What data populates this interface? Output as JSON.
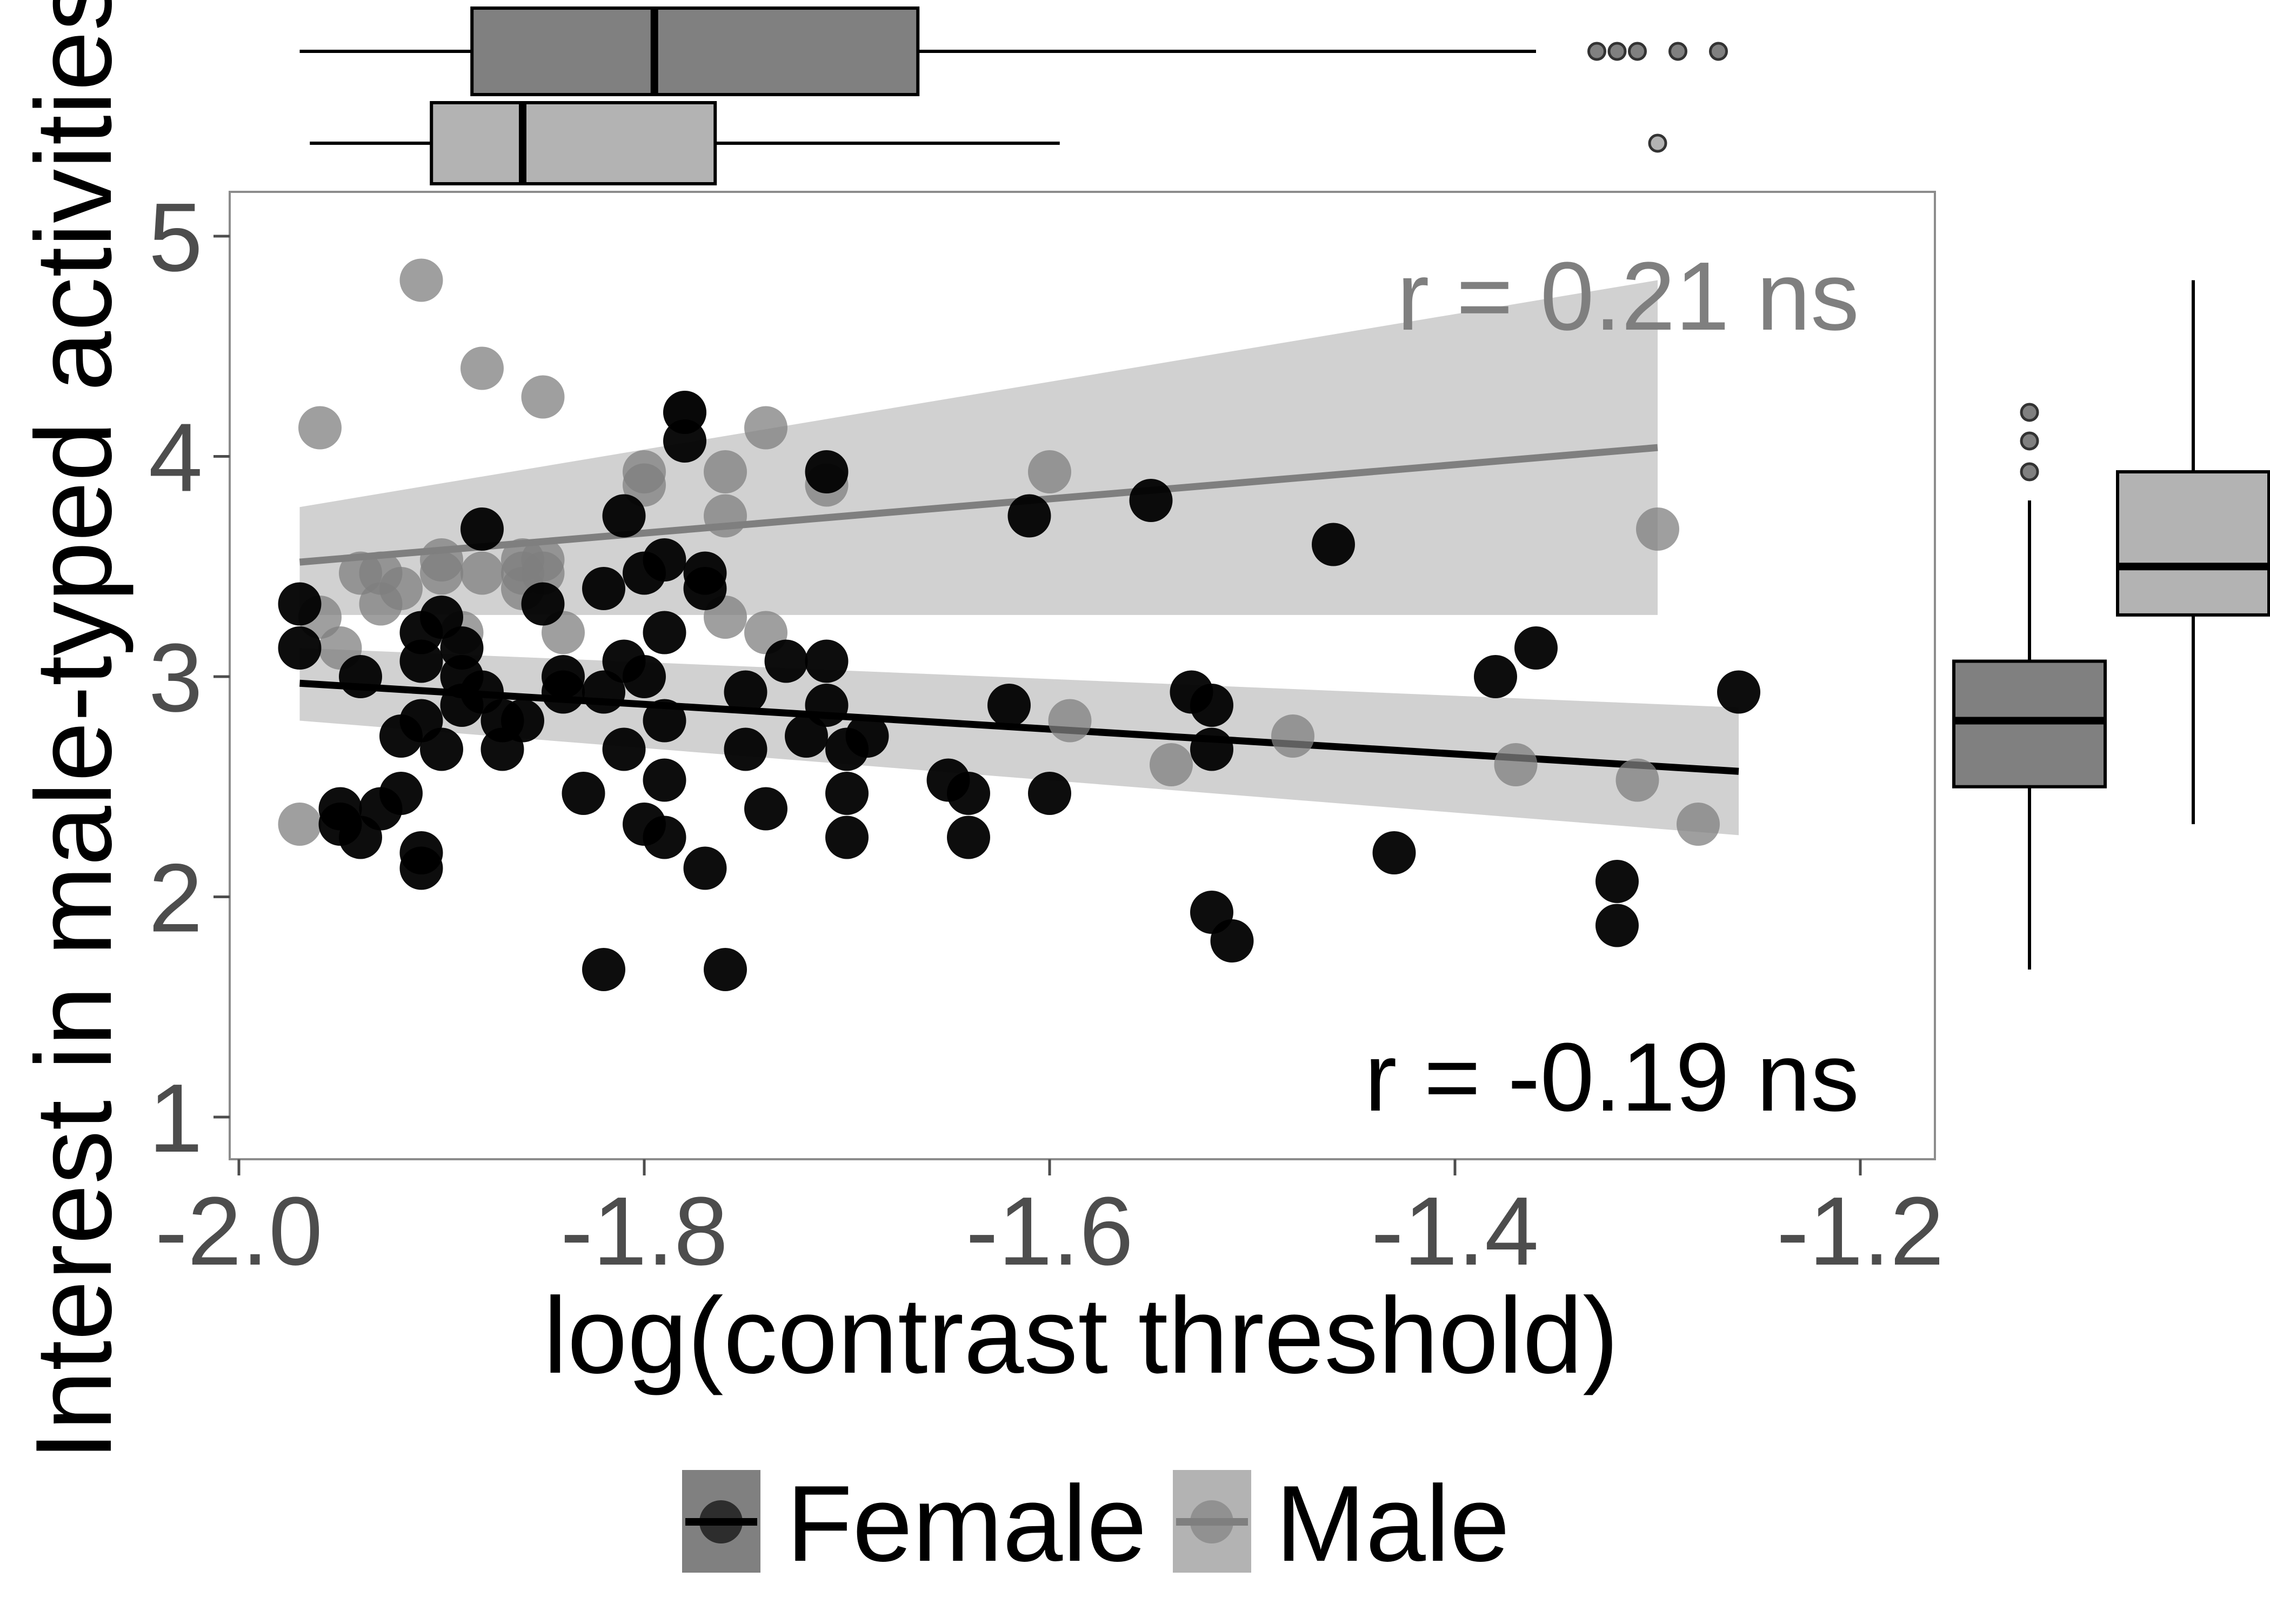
{
  "chart_data": {
    "type": "scatter",
    "xlabel": "log(contrast threshold)",
    "ylabel": "Interest in male-typed activities",
    "xlim": [
      -2.0,
      -1.2
    ],
    "ylim": [
      1,
      5
    ],
    "x_ticks": [
      "-2.0",
      "-1.8",
      "-1.6",
      "-1.4",
      "-1.2"
    ],
    "y_ticks": [
      "1",
      "2",
      "3",
      "4",
      "5"
    ],
    "grid": false,
    "legend_position": "bottom",
    "colors": {
      "female": "#000000",
      "male": "#7f7f7f",
      "female_box": "#808080",
      "male_box": "#b3b3b3",
      "band": "#bdbdbd",
      "axis_text": "#4d4d4d"
    },
    "annotations": {
      "male": "r = 0.21 ns",
      "female": "r = -0.19 ns"
    },
    "series": [
      {
        "name": "Female",
        "regression": {
          "x": [
            -1.97,
            -1.26
          ],
          "y": [
            2.97,
            2.57
          ],
          "ci_low": [
            2.8,
            2.28
          ],
          "ci_high": [
            3.13,
            2.86
          ]
        },
        "points": [
          [
            -1.97,
            3.33
          ],
          [
            -1.97,
            3.13
          ],
          [
            -1.95,
            2.33
          ],
          [
            -1.95,
            2.4
          ],
          [
            -1.94,
            2.27
          ],
          [
            -1.94,
            3.0
          ],
          [
            -1.93,
            2.4
          ],
          [
            -1.92,
            2.47
          ],
          [
            -1.92,
            2.73
          ],
          [
            -1.91,
            2.8
          ],
          [
            -1.91,
            3.07
          ],
          [
            -1.91,
            3.2
          ],
          [
            -1.9,
            3.27
          ],
          [
            -1.91,
            2.2
          ],
          [
            -1.91,
            2.13
          ],
          [
            -1.9,
            2.67
          ],
          [
            -1.89,
            2.87
          ],
          [
            -1.89,
            3.0
          ],
          [
            -1.89,
            3.13
          ],
          [
            -1.88,
            3.67
          ],
          [
            -1.88,
            2.93
          ],
          [
            -1.87,
            2.67
          ],
          [
            -1.87,
            2.8
          ],
          [
            -1.86,
            2.8
          ],
          [
            -1.85,
            3.33
          ],
          [
            -1.84,
            2.93
          ],
          [
            -1.84,
            3.0
          ],
          [
            -1.83,
            2.47
          ],
          [
            -1.82,
            2.93
          ],
          [
            -1.82,
            3.4
          ],
          [
            -1.82,
            1.67
          ],
          [
            -1.81,
            3.07
          ],
          [
            -1.81,
            2.67
          ],
          [
            -1.81,
            3.73
          ],
          [
            -1.8,
            3.0
          ],
          [
            -1.8,
            3.47
          ],
          [
            -1.8,
            2.33
          ],
          [
            -1.79,
            2.27
          ],
          [
            -1.79,
            2.53
          ],
          [
            -1.79,
            3.2
          ],
          [
            -1.79,
            3.53
          ],
          [
            -1.79,
            2.8
          ],
          [
            -1.78,
            4.07
          ],
          [
            -1.78,
            4.2
          ],
          [
            -1.77,
            3.4
          ],
          [
            -1.77,
            3.47
          ],
          [
            -1.77,
            2.13
          ],
          [
            -1.76,
            1.67
          ],
          [
            -1.75,
            2.93
          ],
          [
            -1.75,
            2.67
          ],
          [
            -1.74,
            2.4
          ],
          [
            -1.73,
            3.07
          ],
          [
            -1.72,
            2.73
          ],
          [
            -1.71,
            3.93
          ],
          [
            -1.71,
            2.87
          ],
          [
            -1.71,
            3.07
          ],
          [
            -1.7,
            2.47
          ],
          [
            -1.7,
            2.67
          ],
          [
            -1.7,
            2.27
          ],
          [
            -1.69,
            2.73
          ],
          [
            -1.65,
            2.53
          ],
          [
            -1.64,
            2.47
          ],
          [
            -1.64,
            2.27
          ],
          [
            -1.62,
            2.87
          ],
          [
            -1.61,
            3.73
          ],
          [
            -1.6,
            2.47
          ],
          [
            -1.55,
            3.8
          ],
          [
            -1.53,
            2.93
          ],
          [
            -1.52,
            2.87
          ],
          [
            -1.52,
            1.93
          ],
          [
            -1.52,
            2.67
          ],
          [
            -1.51,
            1.8
          ],
          [
            -1.46,
            3.6
          ],
          [
            -1.43,
            2.2
          ],
          [
            -1.38,
            3.0
          ],
          [
            -1.36,
            3.13
          ],
          [
            -1.32,
            2.07
          ],
          [
            -1.32,
            1.87
          ],
          [
            -1.26,
            2.93
          ]
        ],
        "boxplot_y": {
          "min": 1.67,
          "q1": 2.5,
          "median": 2.8,
          "q3": 3.07,
          "max": 3.8,
          "outliers": [
            3.93,
            4.07,
            4.2
          ]
        },
        "boxplot_x": {
          "min": -1.97,
          "q1": -1.885,
          "median": -1.795,
          "q3": -1.665,
          "max": -1.36,
          "outliers": [
            -1.33,
            -1.32,
            -1.31,
            -1.29,
            -1.27
          ]
        }
      },
      {
        "name": "Male",
        "regression": {
          "x": [
            -1.97,
            -1.3
          ],
          "y": [
            3.52,
            4.04
          ],
          "ci_low": [
            3.28,
            3.28
          ],
          "ci_high": [
            3.77,
            4.8
          ]
        },
        "points": [
          [
            -1.97,
            2.33
          ],
          [
            -1.96,
            4.13
          ],
          [
            -1.96,
            3.27
          ],
          [
            -1.95,
            3.13
          ],
          [
            -1.94,
            3.47
          ],
          [
            -1.93,
            3.47
          ],
          [
            -1.93,
            3.33
          ],
          [
            -1.92,
            3.4
          ],
          [
            -1.91,
            4.8
          ],
          [
            -1.9,
            3.47
          ],
          [
            -1.9,
            3.53
          ],
          [
            -1.89,
            3.2
          ],
          [
            -1.88,
            3.47
          ],
          [
            -1.88,
            4.4
          ],
          [
            -1.86,
            3.47
          ],
          [
            -1.86,
            3.53
          ],
          [
            -1.86,
            3.4
          ],
          [
            -1.85,
            4.27
          ],
          [
            -1.85,
            3.47
          ],
          [
            -1.85,
            3.53
          ],
          [
            -1.84,
            3.2
          ],
          [
            -1.8,
            3.87
          ],
          [
            -1.8,
            3.93
          ],
          [
            -1.78,
            4.2
          ],
          [
            -1.76,
            3.93
          ],
          [
            -1.76,
            3.73
          ],
          [
            -1.76,
            3.27
          ],
          [
            -1.74,
            3.2
          ],
          [
            -1.74,
            4.13
          ],
          [
            -1.71,
            3.87
          ],
          [
            -1.6,
            3.93
          ],
          [
            -1.59,
            2.8
          ],
          [
            -1.54,
            2.6
          ],
          [
            -1.48,
            2.73
          ],
          [
            -1.37,
            2.6
          ],
          [
            -1.31,
            2.53
          ],
          [
            -1.3,
            3.67
          ],
          [
            -1.28,
            2.33
          ]
        ],
        "boxplot_y": {
          "min": 2.33,
          "q1": 3.28,
          "median": 3.5,
          "q3": 3.93,
          "max": 4.8,
          "outliers": []
        },
        "boxplot_x": {
          "min": -1.965,
          "q1": -1.905,
          "median": -1.86,
          "q3": -1.765,
          "max": -1.595,
          "outliers": [
            -1.3
          ]
        }
      }
    ]
  }
}
